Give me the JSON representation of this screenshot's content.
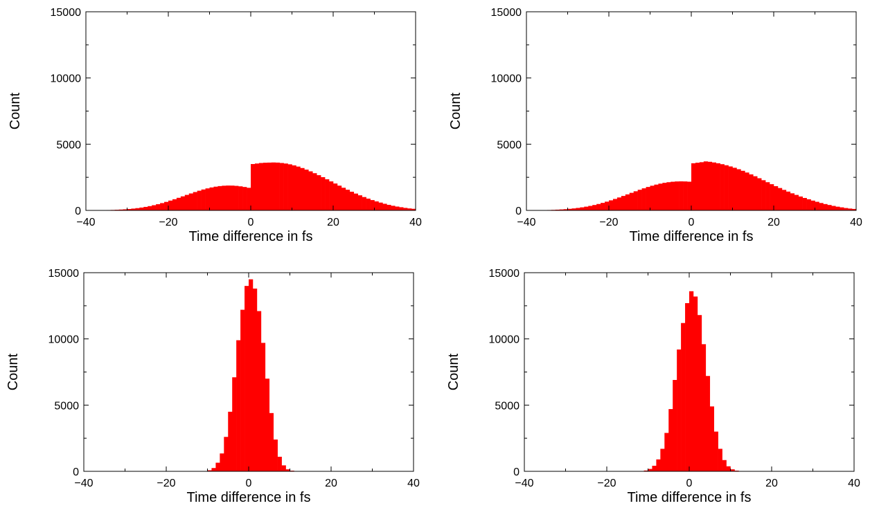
{
  "chart_data": [
    {
      "type": "bar",
      "title": "",
      "xlabel": "Time difference in fs",
      "ylabel": "Count",
      "xlim": [
        -40,
        40
      ],
      "ylim": [
        0,
        15000
      ],
      "xticks": [
        -40,
        -20,
        0,
        20,
        40
      ],
      "yticks": [
        0,
        5000,
        10000,
        15000
      ],
      "xtick_labels": [
        "−40",
        "−20",
        "0",
        "20",
        "40"
      ],
      "ytick_labels": [
        "0",
        "5000",
        "10000",
        "15000"
      ],
      "bar_color": "#ff0000",
      "bin_width": 1,
      "bin_start": -40,
      "values": [
        5,
        7,
        10,
        14,
        19,
        27,
        36,
        48,
        63,
        82,
        106,
        136,
        172,
        215,
        265,
        324,
        392,
        468,
        552,
        643,
        741,
        844,
        951,
        1061,
        1171,
        1280,
        1386,
        1486,
        1579,
        1662,
        1733,
        1792,
        1836,
        1864,
        1877,
        1873,
        1853,
        1818,
        1769,
        1707,
        3500,
        3540,
        3580,
        3600,
        3610,
        3620,
        3610,
        3580,
        3540,
        3480,
        3400,
        3310,
        3200,
        3080,
        2950,
        2810,
        2660,
        2510,
        2350,
        2190,
        2030,
        1870,
        1710,
        1560,
        1410,
        1270,
        1140,
        1010,
        890,
        780,
        680,
        590,
        500,
        420,
        350,
        290,
        240,
        190,
        150,
        120
      ]
    },
    {
      "type": "bar",
      "title": "",
      "xlabel": "Time difference in fs",
      "ylabel": "Count",
      "xlim": [
        -40,
        40
      ],
      "ylim": [
        0,
        15000
      ],
      "xticks": [
        -40,
        -20,
        0,
        20,
        40
      ],
      "yticks": [
        0,
        5000,
        10000,
        15000
      ],
      "xtick_labels": [
        "−40",
        "−20",
        "0",
        "20",
        "40"
      ],
      "ytick_labels": [
        "0",
        "5000",
        "10000",
        "15000"
      ],
      "bar_color": "#ff0000",
      "bin_width": 1,
      "bin_start": -40,
      "values": [
        5,
        8,
        11,
        16,
        22,
        30,
        41,
        55,
        72,
        93,
        119,
        150,
        187,
        231,
        282,
        341,
        408,
        484,
        568,
        660,
        760,
        866,
        977,
        1092,
        1209,
        1327,
        1444,
        1558,
        1667,
        1770,
        1864,
        1948,
        2021,
        2082,
        2130,
        2165,
        2186,
        2193,
        2187,
        2168,
        3560,
        3600,
        3640,
        3700,
        3670,
        3620,
        3560,
        3490,
        3410,
        3320,
        3220,
        3110,
        2990,
        2860,
        2720,
        2580,
        2430,
        2280,
        2130,
        1980,
        1830,
        1690,
        1550,
        1420,
        1290,
        1170,
        1050,
        940,
        840,
        740,
        650,
        560,
        480,
        410,
        340,
        280,
        230,
        180,
        140,
        110
      ]
    },
    {
      "type": "bar",
      "title": "",
      "xlabel": "Time difference in fs",
      "ylabel": "Count",
      "xlim": [
        -40,
        40
      ],
      "ylim": [
        0,
        15000
      ],
      "xticks": [
        -40,
        -20,
        0,
        20,
        40
      ],
      "yticks": [
        0,
        5000,
        10000,
        15000
      ],
      "xtick_labels": [
        "−40",
        "−20",
        "0",
        "20",
        "40"
      ],
      "ytick_labels": [
        "0",
        "5000",
        "10000",
        "15000"
      ],
      "bar_color": "#ff0000",
      "bin_width": 1,
      "bin_start": -11,
      "values": [
        20,
        80,
        250,
        650,
        1350,
        2600,
        4500,
        7100,
        9900,
        12200,
        14000,
        14500,
        13800,
        12100,
        9700,
        7000,
        4400,
        2400,
        1100,
        450,
        150,
        50
      ]
    },
    {
      "type": "bar",
      "title": "",
      "xlabel": "Time difference in fs",
      "ylabel": "Count",
      "xlim": [
        -40,
        40
      ],
      "ylim": [
        0,
        15000
      ],
      "xticks": [
        -40,
        -20,
        0,
        20,
        40
      ],
      "yticks": [
        0,
        5000,
        10000,
        15000
      ],
      "xtick_labels": [
        "−40",
        "−20",
        "0",
        "20",
        "40"
      ],
      "ytick_labels": [
        "0",
        "5000",
        "10000",
        "15000"
      ],
      "bar_color": "#ff0000",
      "bin_width": 1,
      "bin_start": -12,
      "values": [
        20,
        60,
        180,
        420,
        900,
        1700,
        2900,
        4700,
        6900,
        9200,
        11200,
        12700,
        13600,
        13200,
        11800,
        9600,
        7200,
        4900,
        3000,
        1700,
        850,
        380,
        150,
        50
      ]
    }
  ]
}
